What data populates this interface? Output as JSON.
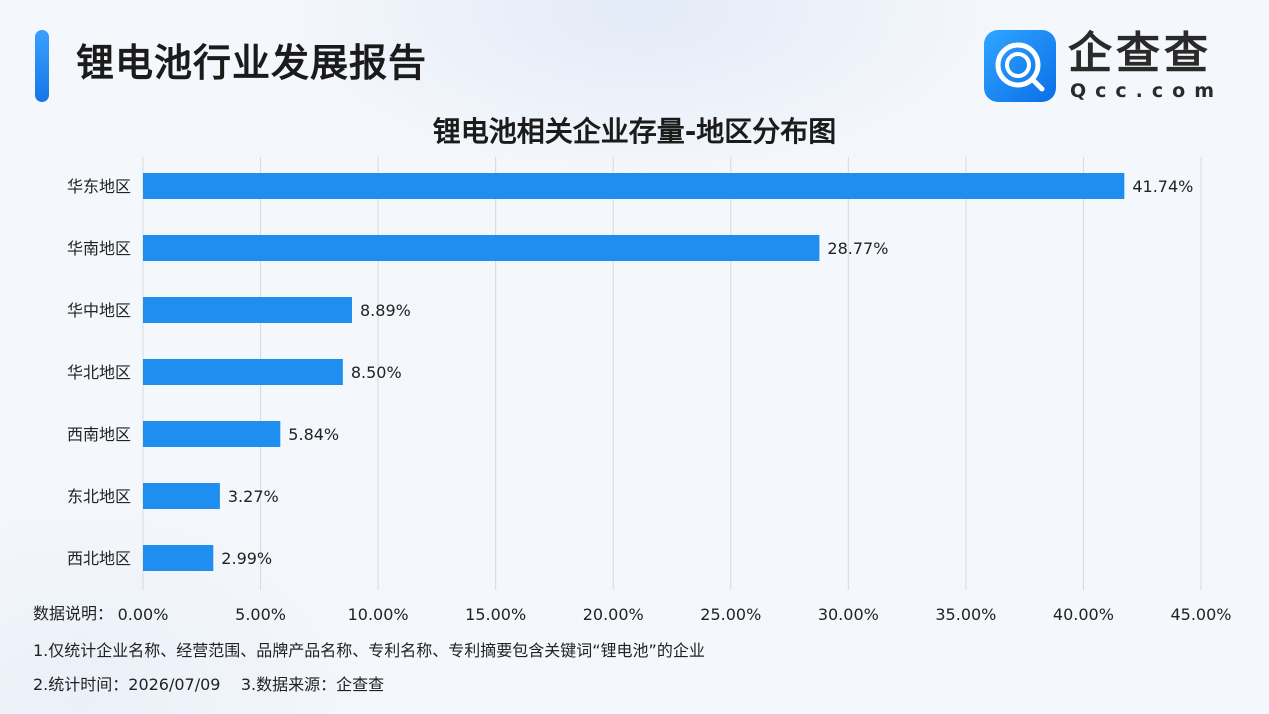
{
  "header": {
    "title": "锂电池行业发展报告",
    "logo_text": "企查查",
    "logo_sub": "Qcc.com"
  },
  "chart_data": {
    "type": "bar",
    "orientation": "horizontal",
    "title": "锂电池相关企业存量-地区分布图",
    "categories": [
      "华东地区",
      "华南地区",
      "华中地区",
      "华北地区",
      "西南地区",
      "东北地区",
      "西北地区"
    ],
    "values": [
      41.74,
      28.77,
      8.89,
      8.5,
      5.84,
      3.27,
      2.99
    ],
    "value_labels": [
      "41.74%",
      "28.77%",
      "8.89%",
      "8.50%",
      "5.84%",
      "3.27%",
      "2.99%"
    ],
    "xlim": [
      0,
      45
    ],
    "x_ticks": [
      0,
      5,
      10,
      15,
      20,
      25,
      30,
      35,
      40,
      45
    ],
    "x_tick_labels": [
      "0.00%",
      "5.00%",
      "10.00%",
      "15.00%",
      "20.00%",
      "25.00%",
      "30.00%",
      "35.00%",
      "40.00%",
      "45.00%"
    ],
    "grid": true,
    "bar_color": "#1e8ef0",
    "gridline_color": "#d6d9de"
  },
  "notes": {
    "label": "数据说明：",
    "line1": "1.仅统计企业名称、经营范围、品牌产品名称、专利名称、专利摘要包含关键词“锂电池”的企业",
    "line2": "2.统计时间：2026/07/09    3.数据来源：企查查"
  }
}
